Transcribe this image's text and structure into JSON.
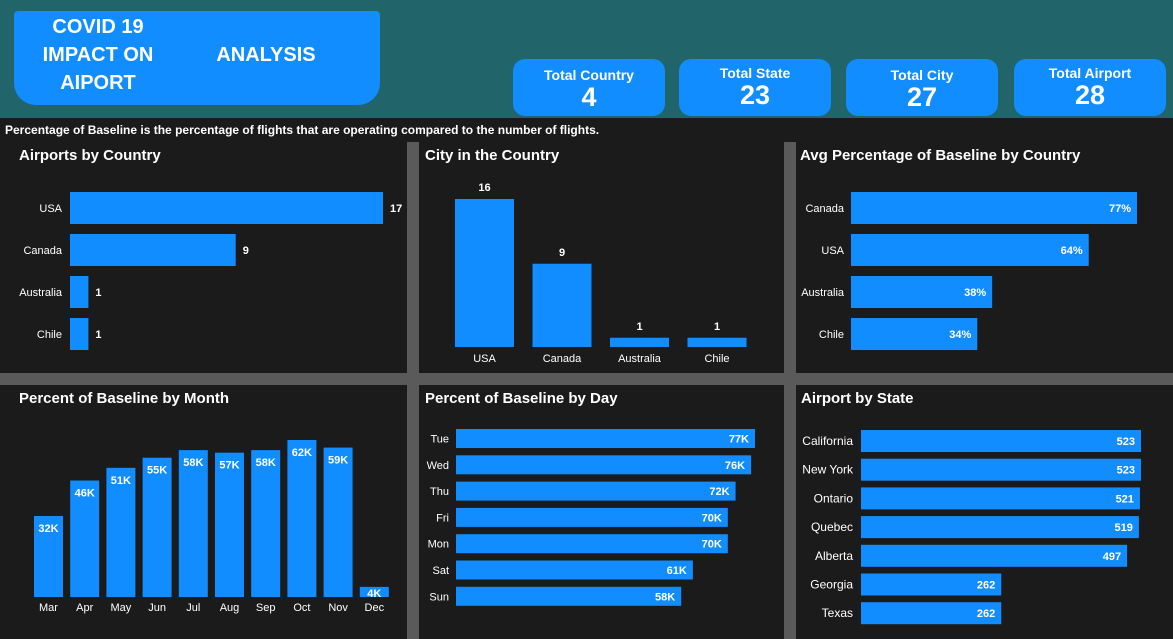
{
  "header": {
    "title_line1": "COVID 19 IMPACT ON AIPORT",
    "title_line2": "ANALYSIS",
    "kpis": [
      {
        "label": "Total Country",
        "value": "4"
      },
      {
        "label": "Total State",
        "value": "23"
      },
      {
        "label": "Total City",
        "value": "27"
      },
      {
        "label": "Total Airport",
        "value": "28"
      }
    ]
  },
  "note": "Percentage of Baseline is the percentage of flights that are operating compared to the number of flights.",
  "colors": {
    "bar": "#118dff",
    "panel": "#1b1b1b",
    "header": "#21646a",
    "gap": "#5a5a5a"
  },
  "chart_data": [
    {
      "id": "airports-by-country",
      "type": "bar",
      "orientation": "horizontal",
      "title": "Airports by Country",
      "categories": [
        "USA",
        "Canada",
        "Australia",
        "Chile"
      ],
      "values": [
        17,
        9,
        1,
        1
      ],
      "labels": [
        "17",
        "9",
        "1",
        "1"
      ],
      "xlim": [
        0,
        17
      ]
    },
    {
      "id": "city-in-country",
      "type": "bar",
      "orientation": "vertical",
      "title": "City in the Country",
      "categories": [
        "USA",
        "Canada",
        "Australia",
        "Chile"
      ],
      "values": [
        16,
        9,
        1,
        1
      ],
      "labels": [
        "16",
        "9",
        "1",
        "1"
      ],
      "ylim": [
        0,
        16
      ]
    },
    {
      "id": "avg-baseline-by-country",
      "type": "bar",
      "orientation": "horizontal",
      "title": "Avg Percentage of Baseline by Country",
      "categories": [
        "Canada",
        "USA",
        "Australia",
        "Chile"
      ],
      "values": [
        77,
        64,
        38,
        34
      ],
      "labels": [
        "77%",
        "64%",
        "38%",
        "34%"
      ],
      "xlim": [
        0,
        77
      ]
    },
    {
      "id": "baseline-by-month",
      "type": "bar",
      "orientation": "vertical",
      "title": "Percent of Baseline by Month",
      "categories": [
        "Mar",
        "Apr",
        "May",
        "Jun",
        "Jul",
        "Aug",
        "Sep",
        "Oct",
        "Nov",
        "Dec"
      ],
      "values": [
        32,
        46,
        51,
        55,
        58,
        57,
        58,
        62,
        59,
        4
      ],
      "labels": [
        "32K",
        "46K",
        "51K",
        "55K",
        "58K",
        "57K",
        "58K",
        "62K",
        "59K",
        "4K"
      ],
      "ylim": [
        0,
        62
      ]
    },
    {
      "id": "baseline-by-day",
      "type": "bar",
      "orientation": "horizontal",
      "title": "Percent of Baseline by Day",
      "categories": [
        "Tue",
        "Wed",
        "Thu",
        "Fri",
        "Mon",
        "Sat",
        "Sun"
      ],
      "values": [
        77,
        76,
        72,
        70,
        70,
        61,
        58
      ],
      "labels": [
        "77K",
        "76K",
        "72K",
        "70K",
        "70K",
        "61K",
        "58K"
      ],
      "xlim": [
        0,
        77
      ]
    },
    {
      "id": "airport-by-state",
      "type": "bar",
      "orientation": "horizontal",
      "title": "Airport by State",
      "categories": [
        "California",
        "New York",
        "Ontario",
        "Quebec",
        "Alberta",
        "Georgia",
        "Texas"
      ],
      "values": [
        523,
        523,
        521,
        519,
        497,
        262,
        262
      ],
      "labels": [
        "523",
        "523",
        "521",
        "519",
        "497",
        "262",
        "262"
      ],
      "xlim": [
        0,
        523
      ]
    }
  ]
}
